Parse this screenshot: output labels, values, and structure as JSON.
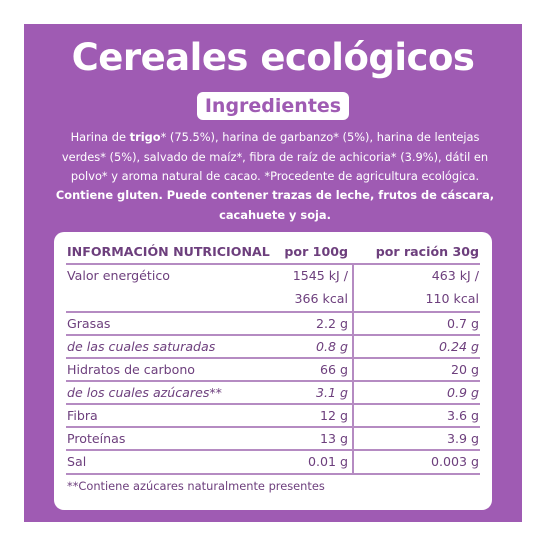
{
  "title": "Cereales ecológicos",
  "ingredients": {
    "heading": "Ingredientes",
    "text_before": "Harina de ",
    "text_bold": "trigo",
    "text_after": "* (75.5%), harina de garbanzo* (5%), harina de lentejas verdes* (5%), salvado de maíz*, fibra de raíz de achicoria* (3.9%), dátil en polvo* y aroma natural de cacao. *Procedente de agricultura ecológica.",
    "allergens": "Contiene gluten. Puede contener trazas de leche, frutos de cáscara, cacahuete y soja."
  },
  "nutrition": {
    "headers": [
      "INFORMACIÓN NUTRICIONAL",
      "por 100g",
      "por ración 30g"
    ],
    "rows": [
      {
        "name": "Valor energético",
        "per100_l1": "1545 kJ /",
        "per100_l2": "366 kcal",
        "serv_l1": "463 kJ /",
        "serv_l2": "110 kcal"
      },
      {
        "name": "Grasas",
        "per100": "2.2 g",
        "serving": "0.7 g"
      },
      {
        "name": "de las cuales saturadas",
        "per100": "0.8 g",
        "serving": "0.24 g"
      },
      {
        "name": "Hidratos de carbono",
        "per100": "66 g",
        "serving": "20 g"
      },
      {
        "name": "de los cuales azúcares**",
        "per100": "3.1 g",
        "serving": "0.9 g"
      },
      {
        "name": "Fibra",
        "per100": "12 g",
        "serving": "3.6 g"
      },
      {
        "name": "Proteínas",
        "per100": "13 g",
        "serving": "3.9 g"
      },
      {
        "name": "Sal",
        "per100": "0.01 g",
        "serving": "0.003 g"
      }
    ],
    "footnote": "**Contiene azúcares naturalmente presentes"
  },
  "colors": {
    "brand_purple": "#9f5bb3",
    "text_purple": "#6d3f7d",
    "rule": "#b58bc2"
  }
}
